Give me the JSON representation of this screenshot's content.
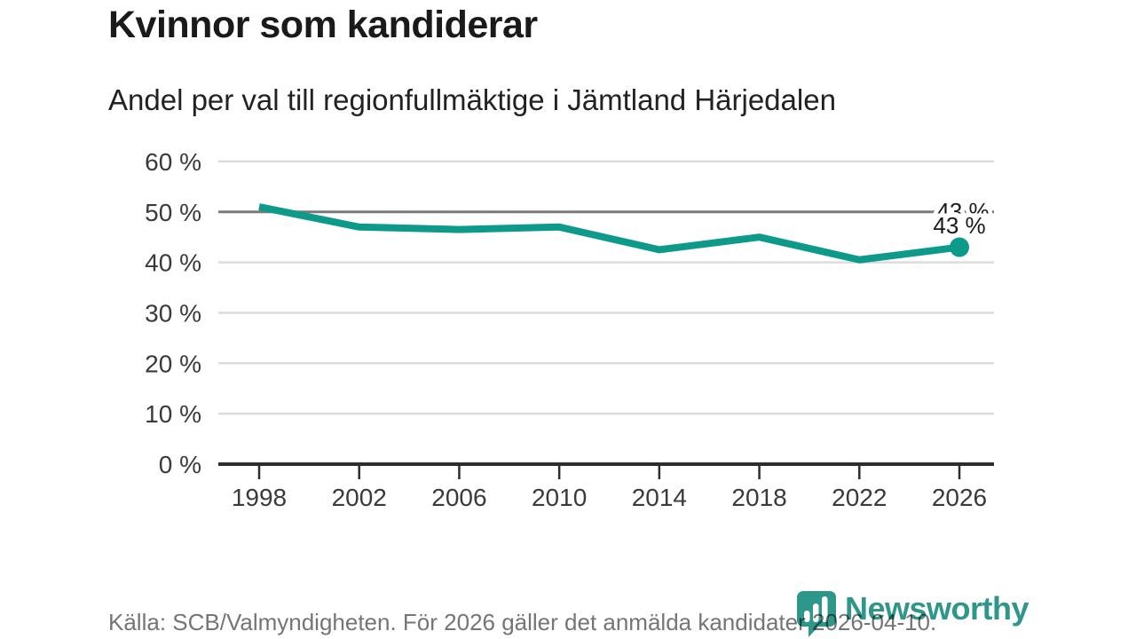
{
  "chart_data": {
    "type": "line",
    "title": "Kvinnor som kandiderar",
    "subtitle": "Andel per val till regionfullmäktige i Jämtland Härjedalen",
    "source": "Källa: SCB/Valmyndigheten. För 2026 gäller det anmälda kandidater 2026-04-10.",
    "x": [
      1998,
      2002,
      2006,
      2010,
      2014,
      2018,
      2022,
      2026
    ],
    "x_tick_labels": [
      "1998",
      "2002",
      "2006",
      "2010",
      "2014",
      "2018",
      "2022",
      "2026"
    ],
    "values": [
      51,
      47,
      46.5,
      47,
      42.5,
      45,
      40.5,
      43
    ],
    "unit": "%",
    "ylim": [
      0,
      60
    ],
    "y_ticks": [
      0,
      10,
      20,
      30,
      40,
      50,
      60
    ],
    "y_tick_labels": [
      "0 %",
      "10 %",
      "20 %",
      "30 %",
      "40 %",
      "50 %",
      "60 %"
    ],
    "emphasized_gridline": 50,
    "grid": "horizontal-only",
    "legend": "none",
    "last_point_marker": true,
    "annotation": {
      "text": "43 %",
      "x": 2026,
      "y": 43
    }
  },
  "branding": {
    "logo_text": "Newsworthy",
    "logo_icon": "speech-bubble-bar-chart"
  },
  "colors": {
    "line": "#0d9a8b",
    "grid": "#dcdcdc",
    "grid_emphasis": "#7a7a7a",
    "axis": "#2d2d2d",
    "title_text": "#1a1a1a",
    "tick_label": "#3a3a3a",
    "source_text": "#757575",
    "logo": "#2f9789",
    "annotation_text": "#1a1a1a",
    "background": "#ffffff"
  }
}
